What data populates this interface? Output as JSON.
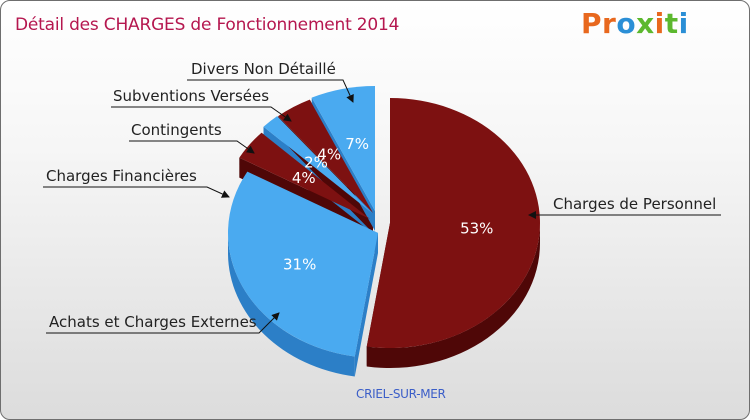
{
  "header": {
    "title": "Détail des CHARGES de Fonctionnement 2014",
    "logo": "Proxiti"
  },
  "footer": {
    "city": "CRIEL-SUR-MER"
  },
  "colors": {
    "blue_top": "#4aaaf0",
    "blue_side": "#2c7fc7",
    "red_top": "#7d1111",
    "red_side": "#4f0707",
    "logo_letters": [
      "#e8681e",
      "#e8681e",
      "#2b8fd6",
      "#5cb82e",
      "#e8681e",
      "#5cb82e",
      "#2b8fd6"
    ]
  },
  "chart_data": {
    "type": "pie",
    "title": "Détail des CHARGES de Fonctionnement 2014",
    "slices": [
      {
        "label": "Charges de Personnel",
        "value": 53,
        "pct_label": "53%",
        "color": "red"
      },
      {
        "label": "Achats et Charges Externes",
        "value": 31,
        "pct_label": "31%",
        "color": "blue"
      },
      {
        "label": "Charges Financières",
        "value": 4,
        "pct_label": "4%",
        "color": "red"
      },
      {
        "label": "Contingents",
        "value": 2,
        "pct_label": "2%",
        "color": "blue"
      },
      {
        "label": "Subventions Versées",
        "value": 4,
        "pct_label": "4%",
        "color": "red"
      },
      {
        "label": "Divers Non Détaillé",
        "value": 7,
        "pct_label": "7%",
        "color": "blue"
      }
    ]
  }
}
